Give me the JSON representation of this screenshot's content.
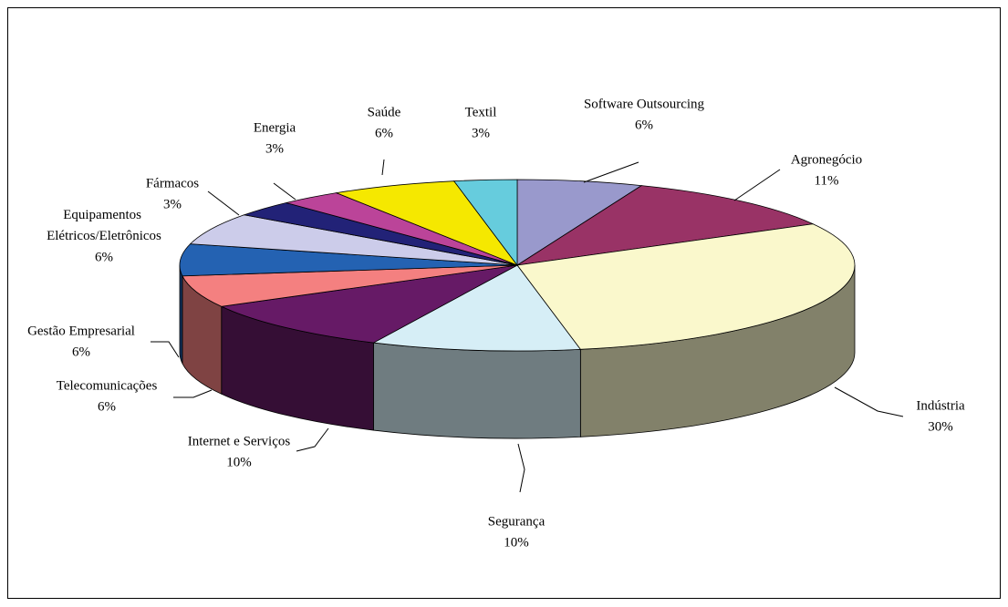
{
  "chart_data": {
    "type": "pie",
    "categories": [
      "Software Outsourcing",
      "Agronegócio",
      "Indústria",
      "Segurança",
      "Internet e Serviços",
      "Telecomunicações",
      "Gestão Empresarial",
      "Equipamentos Elétricos/Eletrônicos",
      "Fármacos",
      "Energia",
      "Saúde",
      "Textil"
    ],
    "values": [
      6,
      11,
      30,
      10,
      10,
      6,
      6,
      6,
      3,
      3,
      6,
      3
    ],
    "value_labels": [
      "6%",
      "11%",
      "30%",
      "10%",
      "10%",
      "6%",
      "6%",
      "6%",
      "3%",
      "3%",
      "6%",
      "3%"
    ],
    "colors": [
      "#9999cc",
      "#993366",
      "#faf8cc",
      "#d6eef6",
      "#661a66",
      "#f48080",
      "#2462b2",
      "#ccccea",
      "#222277",
      "#bb4499",
      "#f5e800",
      "#66ccdd"
    ]
  }
}
